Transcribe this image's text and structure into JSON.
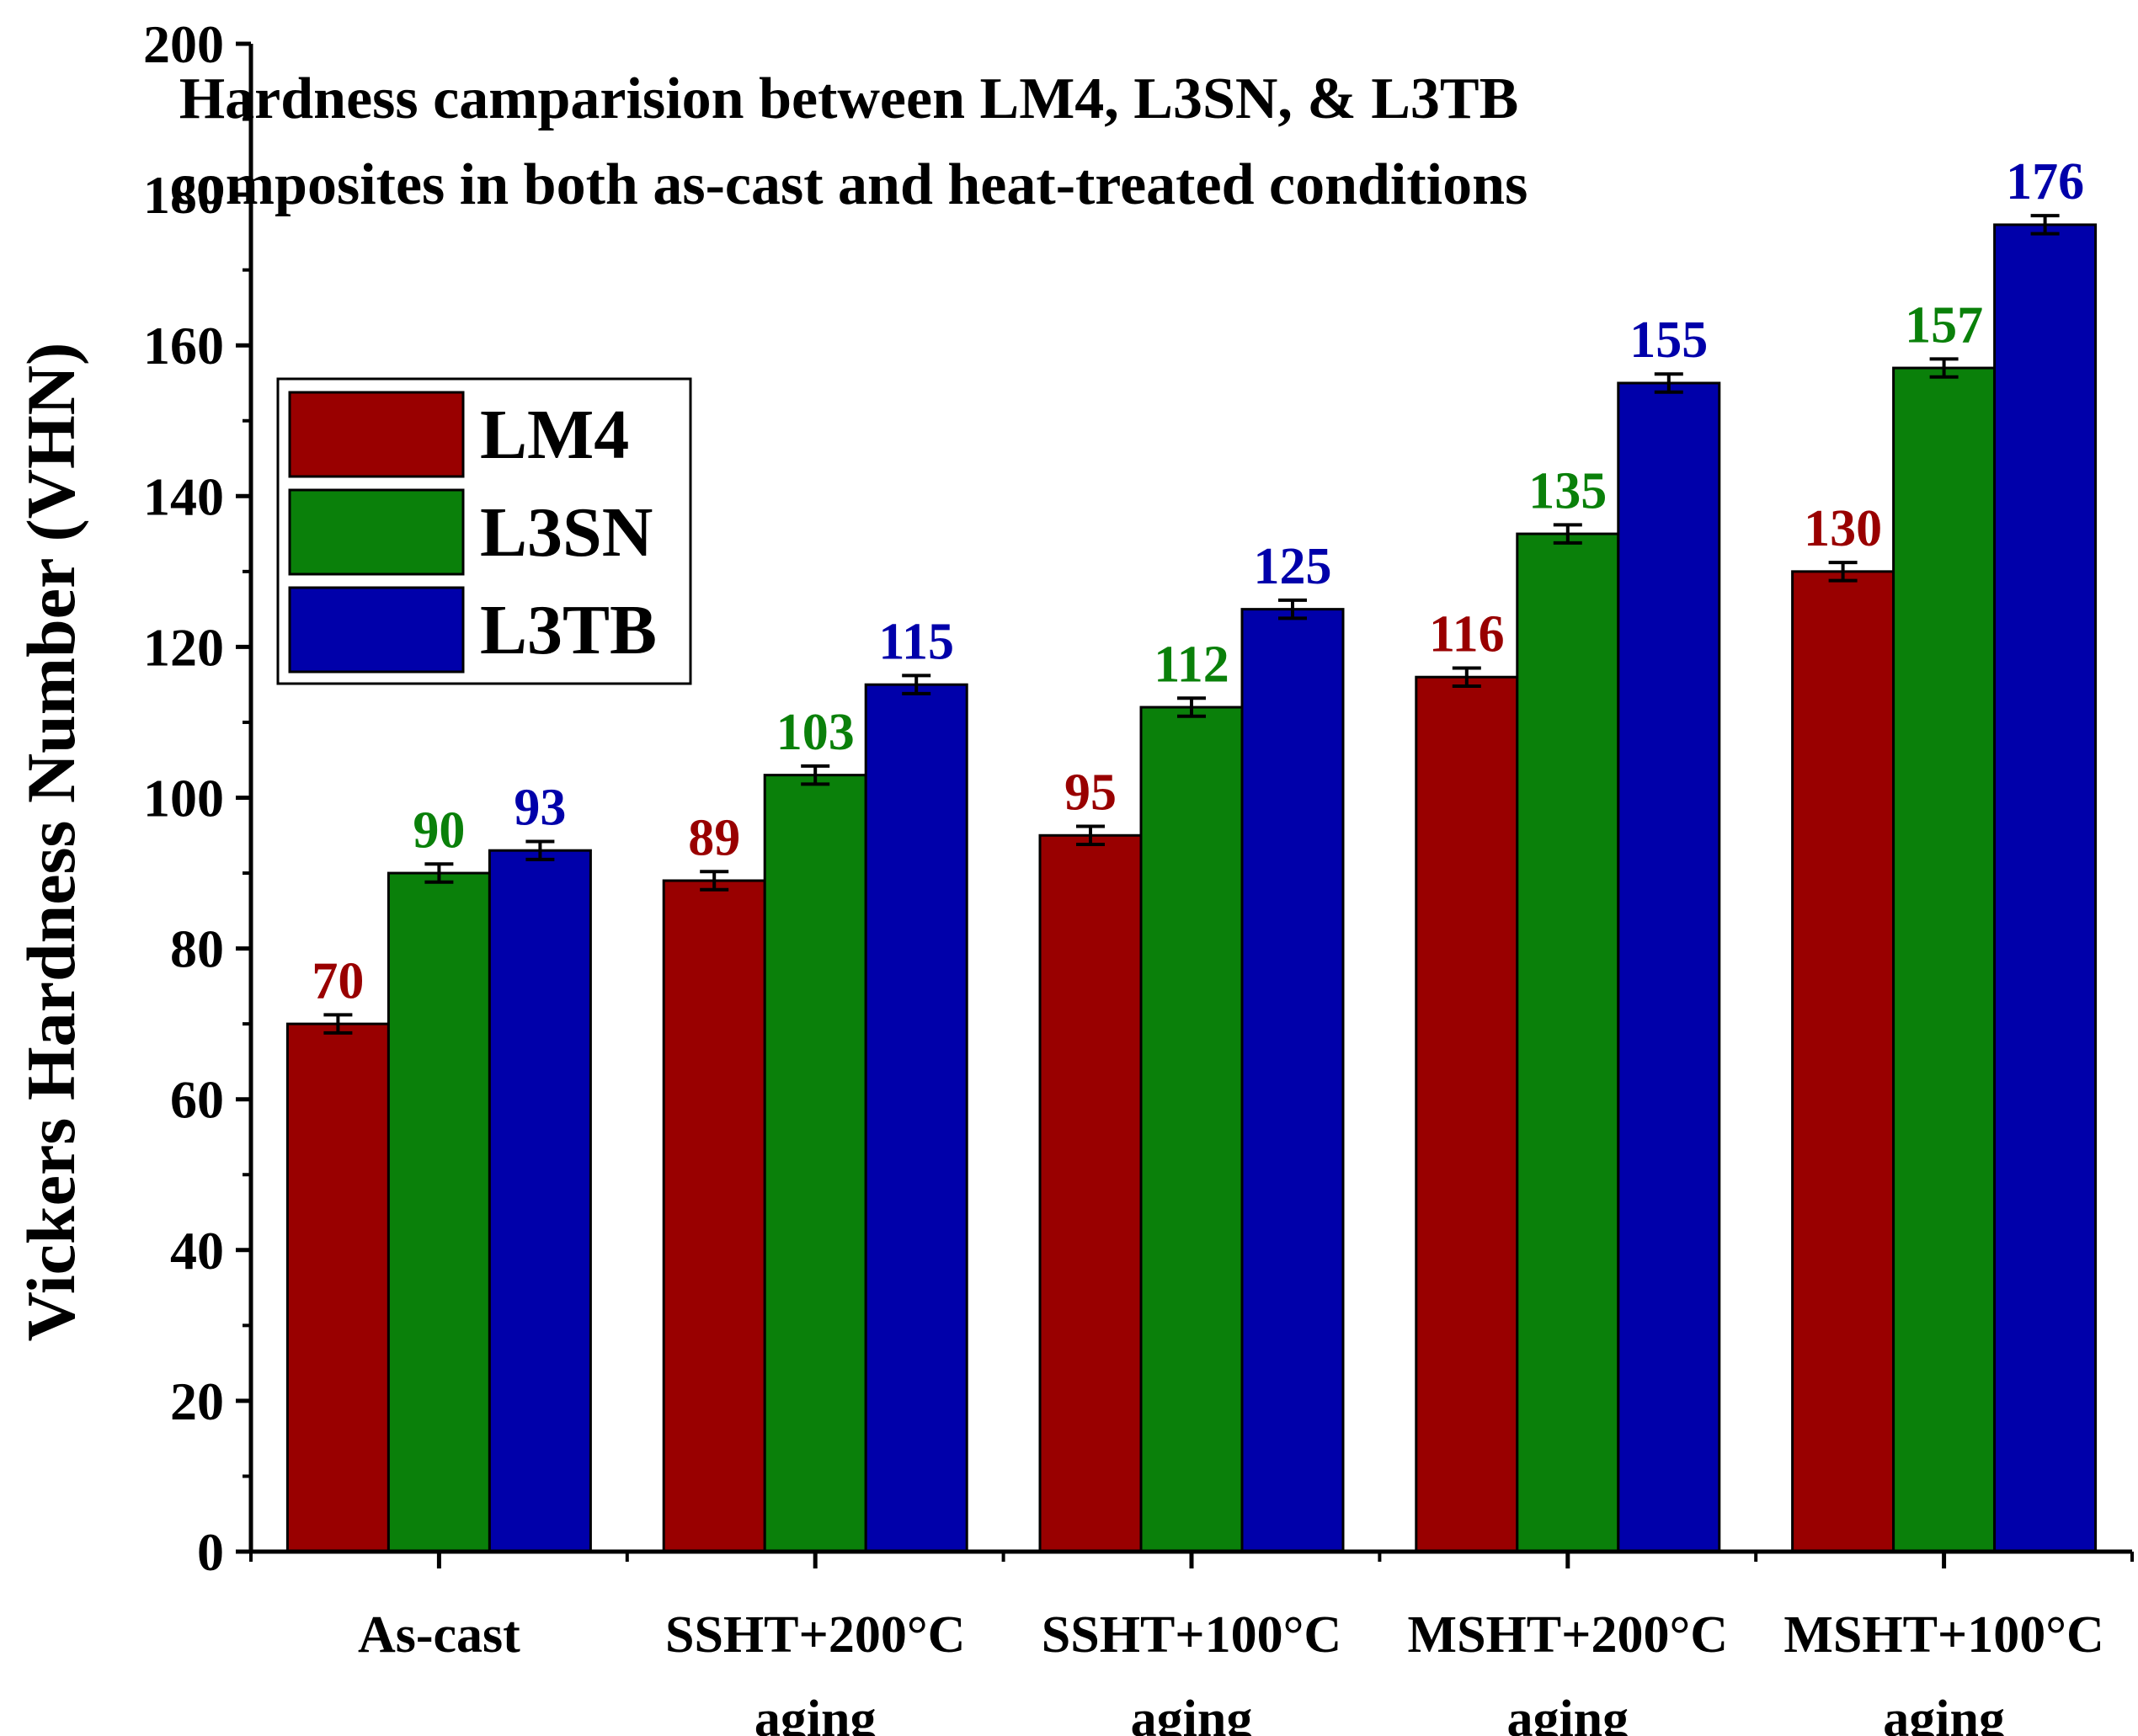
{
  "chart_data": {
    "type": "bar",
    "title_lines": [
      "Hardness camparision between LM4, L3SN, & L3TB",
      "composites in both as-cast and heat-treated conditions"
    ],
    "ylabel": "Vickers Hardness Number (VHN)",
    "xlabel": "",
    "ylim": [
      0,
      200
    ],
    "ytick_step": 20,
    "yticks": [
      "0",
      "20",
      "40",
      "60",
      "80",
      "100",
      "120",
      "140",
      "160",
      "180",
      "200"
    ],
    "categories": [
      [
        "As-cast"
      ],
      [
        "SSHT+200°C",
        "aging"
      ],
      [
        "SSHT+100°C",
        "aging"
      ],
      [
        "MSHT+200°C",
        "aging"
      ],
      [
        "MSHT+100°C",
        "aging"
      ]
    ],
    "series": [
      {
        "name": "LM4",
        "color": "#990000",
        "label_color": "#990000",
        "values": [
          70,
          89,
          95,
          116,
          130
        ],
        "errors": [
          1.2,
          1.2,
          1.2,
          1.2,
          1.2
        ]
      },
      {
        "name": "L3SN",
        "color": "#0a800a",
        "label_color": "#0a800a",
        "values": [
          90,
          103,
          112,
          135,
          157
        ],
        "errors": [
          1.2,
          1.2,
          1.2,
          1.2,
          1.2
        ]
      },
      {
        "name": "L3TB",
        "color": "#0000aa",
        "label_color": "#0000aa",
        "values": [
          93,
          115,
          125,
          155,
          176
        ],
        "errors": [
          1.2,
          1.2,
          1.2,
          1.2,
          1.2
        ]
      }
    ],
    "legend_position": "top-left"
  }
}
